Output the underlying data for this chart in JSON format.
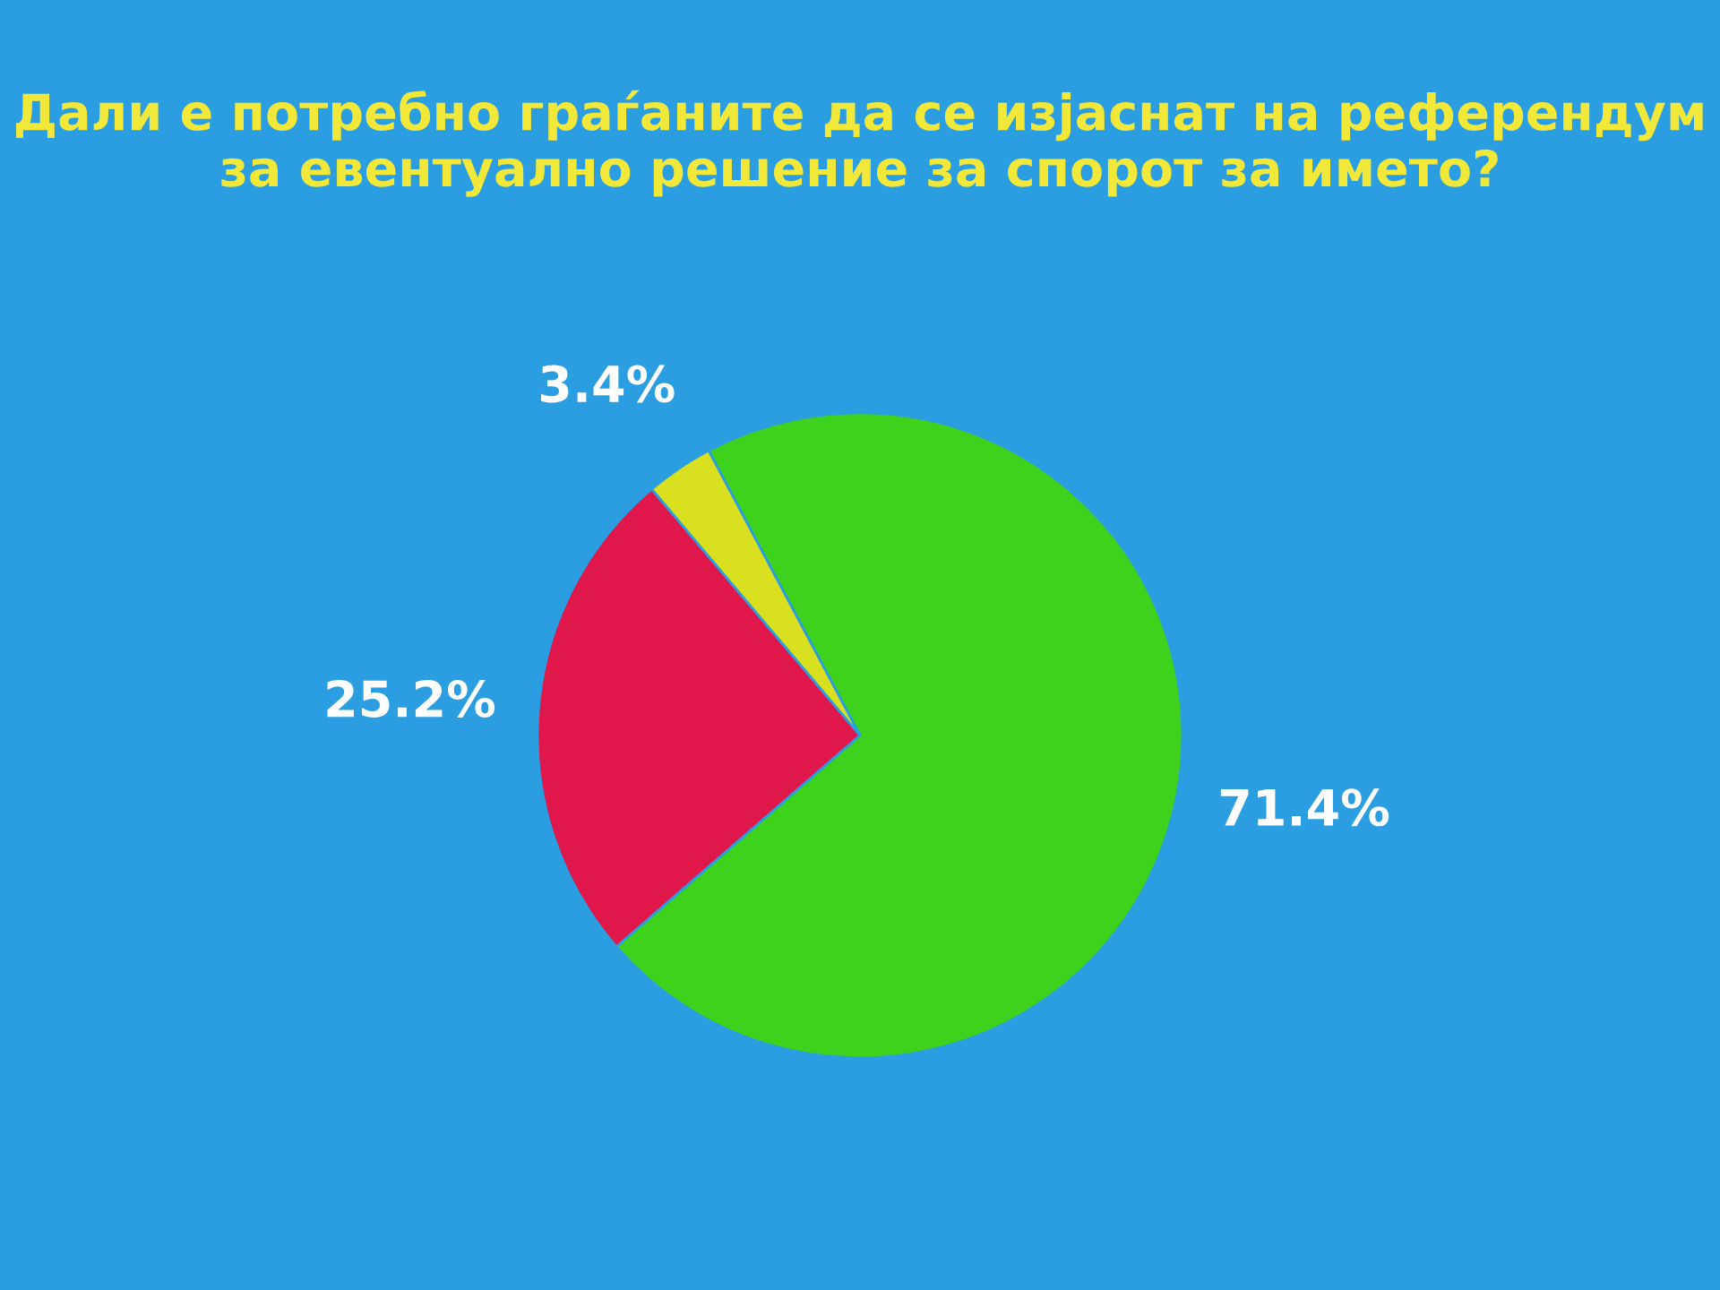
{
  "chart_data": {
    "type": "pie",
    "title": "Дали е потребно граѓаните да се изјаснат на референдум\nза евентуално решение за спорот за името?",
    "categories": [
      null,
      null,
      null
    ],
    "values": [
      71.4,
      25.2,
      3.4
    ],
    "colors": [
      "#3ed21c",
      "#e0174a",
      "#d8e020"
    ],
    "value_labels": [
      "71.4%",
      "25.2%",
      "3.4%"
    ]
  }
}
